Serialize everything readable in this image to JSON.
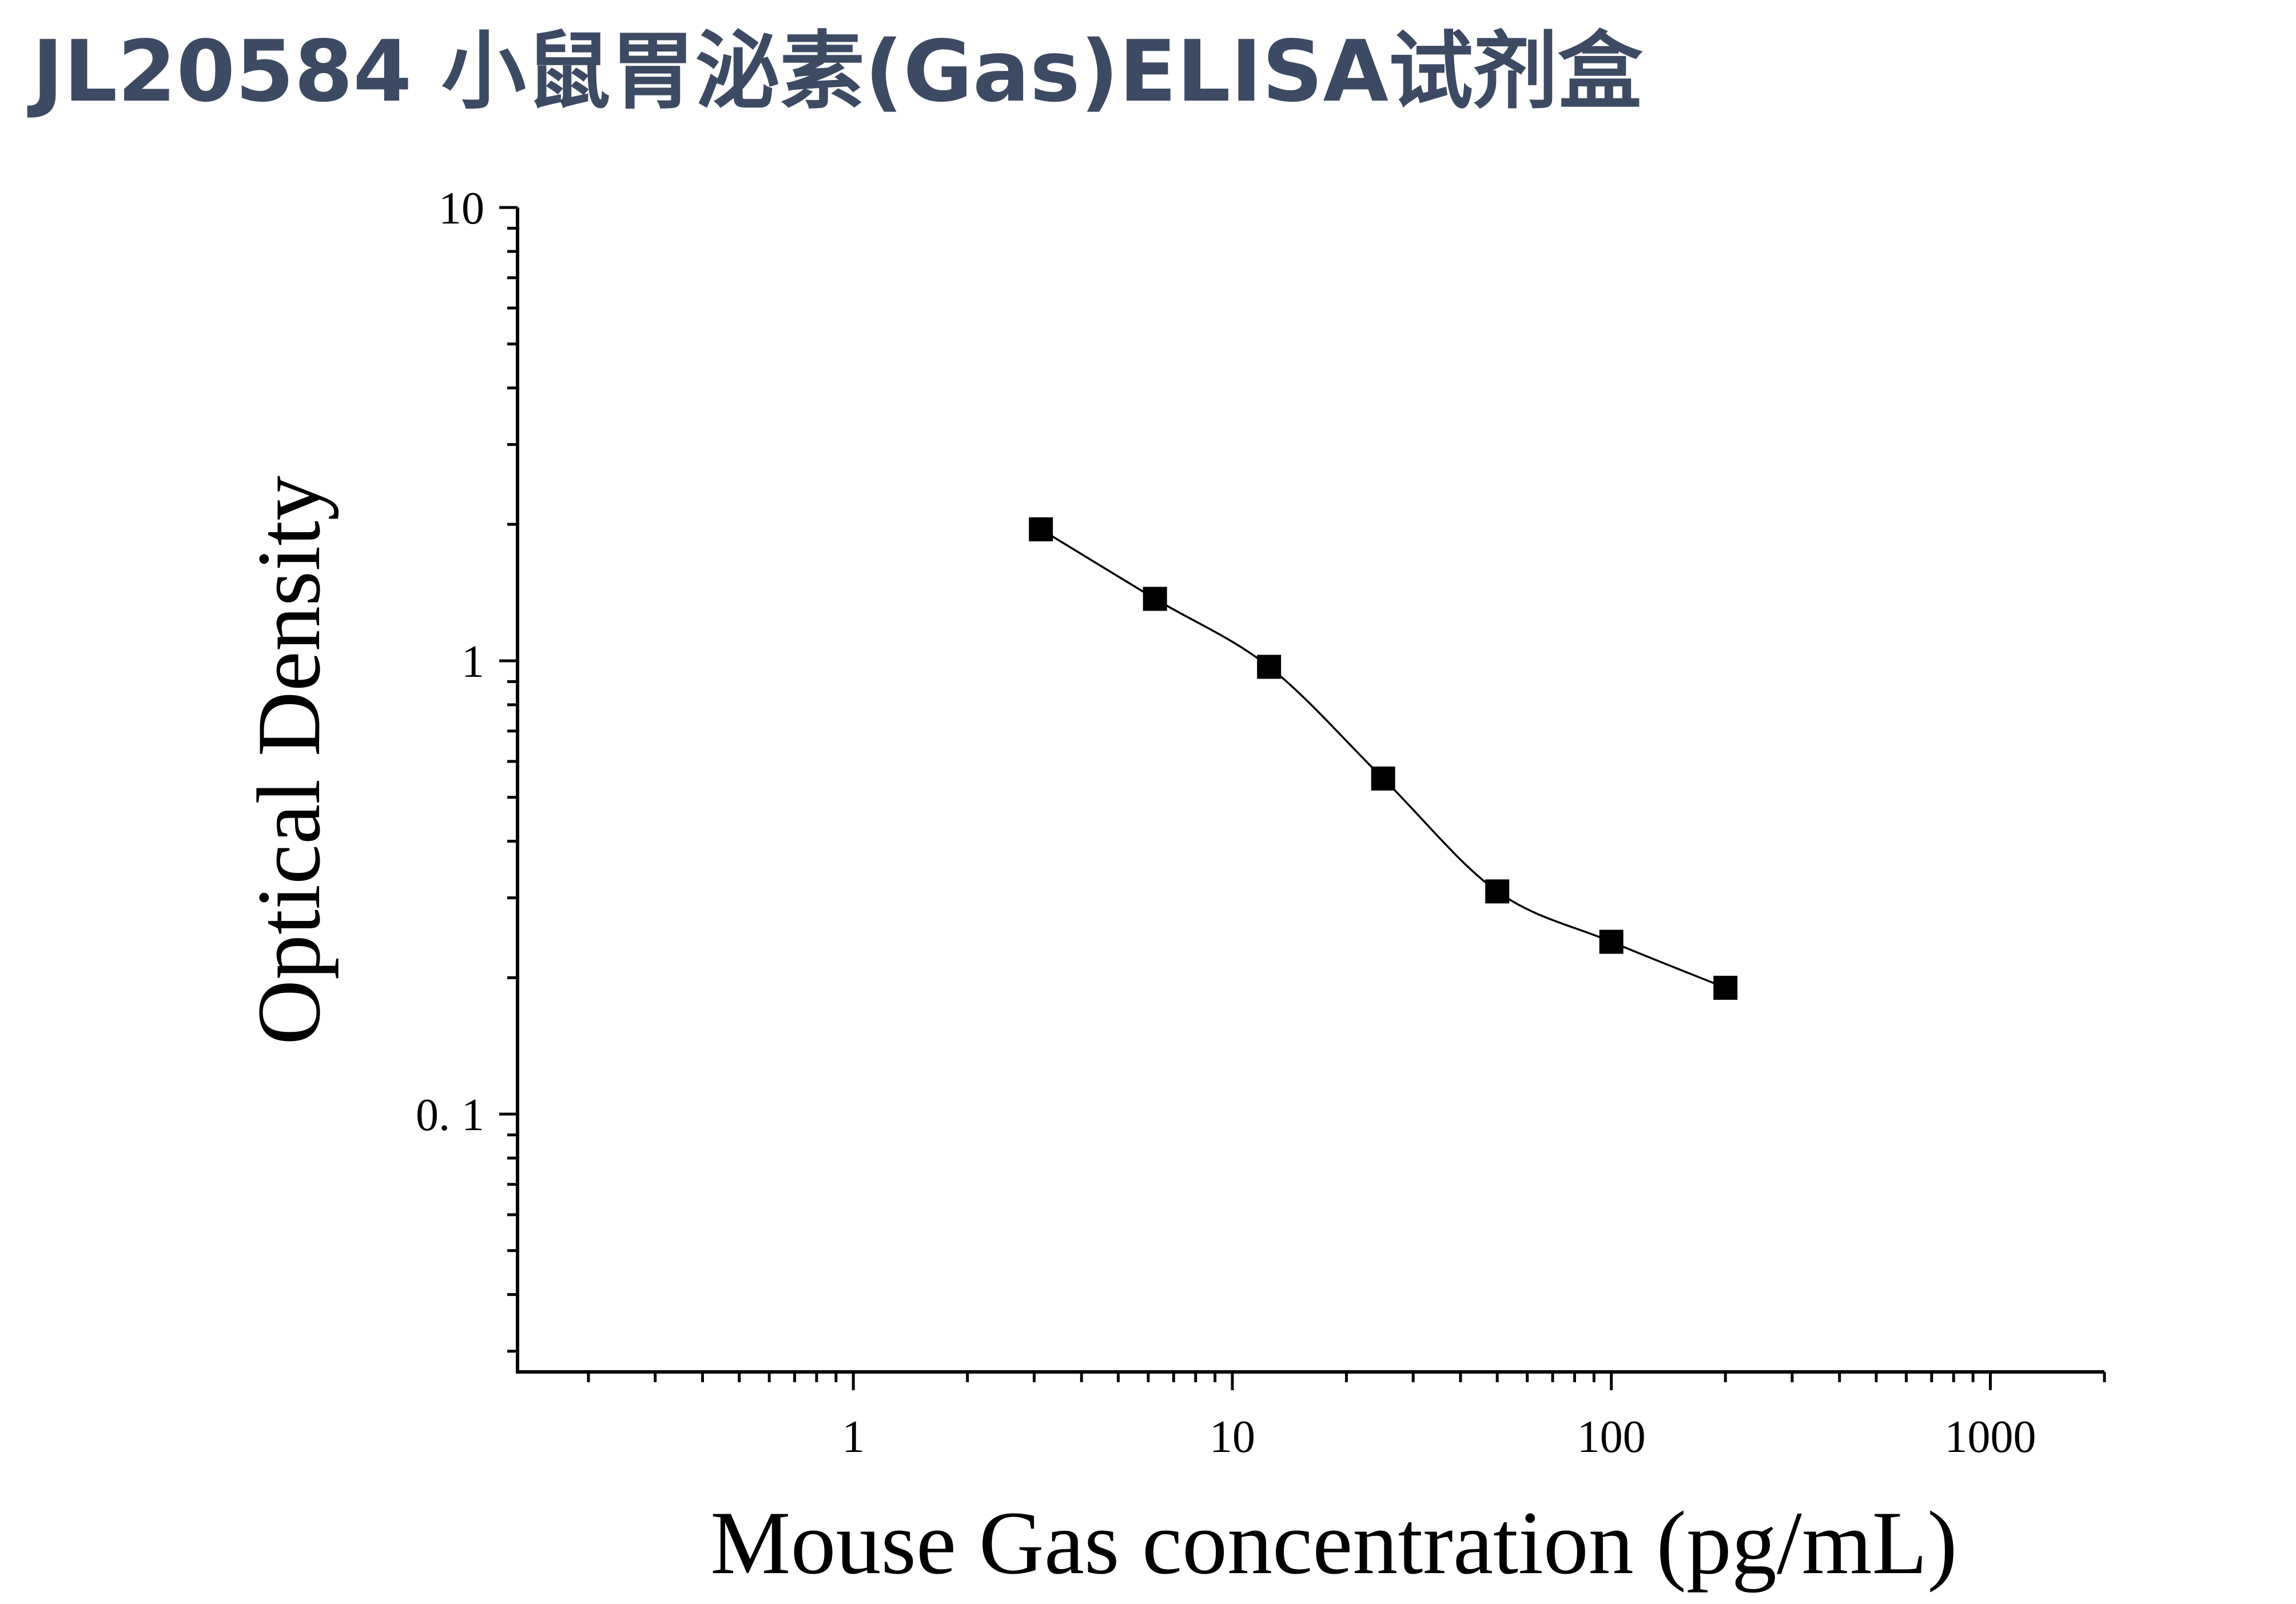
{
  "title": "JL20584 小鼠胃泌素(Gas)ELISA试剂盒",
  "colors": {
    "title": "#3d4a63",
    "axis": "#000000",
    "markers": "#000000"
  },
  "chart_data": {
    "type": "scatter",
    "xlabel": "Mouse Gas concentration (pg/mL)",
    "ylabel": "Optical Density",
    "xscale": "log",
    "yscale": "log",
    "xlim": [
      0.13,
      2000
    ],
    "ylim": [
      0.027,
      10
    ],
    "x_ticks": [
      {
        "value": 1,
        "label": "1"
      },
      {
        "value": 10,
        "label": "10"
      },
      {
        "value": 100,
        "label": "100"
      },
      {
        "value": 1000,
        "label": "1000"
      }
    ],
    "y_ticks": [
      {
        "value": 10,
        "label": "10"
      },
      {
        "value": 1,
        "label": "1"
      },
      {
        "value": 0.1,
        "label": "0. 1"
      }
    ],
    "grid": false,
    "series": [
      {
        "marker": "square",
        "fit": "four-parameter logistic curve",
        "x": [
          3.125,
          6.25,
          12.5,
          25,
          50,
          100,
          200
        ],
        "y": [
          1.95,
          1.37,
          0.97,
          0.55,
          0.31,
          0.24,
          0.19
        ]
      }
    ]
  }
}
